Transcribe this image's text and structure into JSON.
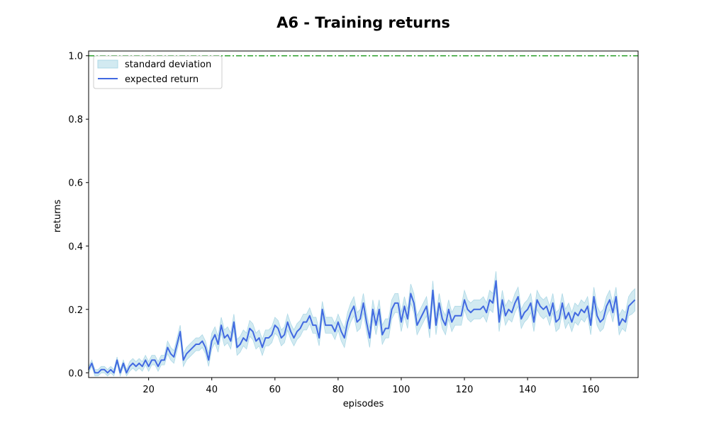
{
  "chart_data": {
    "type": "line",
    "title": "A6 - Training returns",
    "xlabel": "episodes",
    "ylabel": "returns",
    "xlim": [
      1,
      175
    ],
    "ylim": [
      -0.015,
      1.015
    ],
    "xticks": [
      20,
      40,
      60,
      80,
      100,
      120,
      140,
      160
    ],
    "yticks": [
      0.0,
      0.2,
      0.4,
      0.6,
      0.8,
      1.0
    ],
    "grid": false,
    "legend": "top-left",
    "reference_line": {
      "y": 1.0,
      "color": "#2ca02c",
      "style": "dash-dot"
    },
    "series": [
      {
        "name": "expected return",
        "color": "#4169e1",
        "x_start": 1,
        "values": [
          0.01,
          0.03,
          0.0,
          0.0,
          0.01,
          0.01,
          0.0,
          0.01,
          0.0,
          0.04,
          0.0,
          0.03,
          0.0,
          0.02,
          0.03,
          0.02,
          0.03,
          0.02,
          0.04,
          0.02,
          0.04,
          0.04,
          0.02,
          0.04,
          0.04,
          0.08,
          0.06,
          0.05,
          0.09,
          0.13,
          0.04,
          0.06,
          0.07,
          0.08,
          0.09,
          0.09,
          0.1,
          0.08,
          0.04,
          0.1,
          0.12,
          0.09,
          0.15,
          0.11,
          0.12,
          0.1,
          0.16,
          0.08,
          0.09,
          0.11,
          0.1,
          0.14,
          0.13,
          0.1,
          0.11,
          0.08,
          0.11,
          0.11,
          0.12,
          0.15,
          0.14,
          0.11,
          0.12,
          0.16,
          0.13,
          0.11,
          0.13,
          0.14,
          0.16,
          0.16,
          0.18,
          0.15,
          0.15,
          0.11,
          0.2,
          0.15,
          0.15,
          0.15,
          0.13,
          0.16,
          0.13,
          0.11,
          0.16,
          0.19,
          0.21,
          0.16,
          0.17,
          0.22,
          0.16,
          0.11,
          0.2,
          0.15,
          0.2,
          0.12,
          0.14,
          0.14,
          0.2,
          0.22,
          0.22,
          0.16,
          0.21,
          0.17,
          0.25,
          0.22,
          0.15,
          0.17,
          0.19,
          0.21,
          0.14,
          0.26,
          0.15,
          0.22,
          0.17,
          0.15,
          0.2,
          0.16,
          0.18,
          0.18,
          0.18,
          0.23,
          0.2,
          0.19,
          0.2,
          0.2,
          0.2,
          0.21,
          0.19,
          0.23,
          0.22,
          0.29,
          0.16,
          0.23,
          0.18,
          0.2,
          0.19,
          0.22,
          0.24,
          0.17,
          0.19,
          0.2,
          0.22,
          0.16,
          0.23,
          0.21,
          0.2,
          0.21,
          0.18,
          0.22,
          0.16,
          0.17,
          0.22,
          0.17,
          0.19,
          0.16,
          0.19,
          0.18,
          0.2,
          0.19,
          0.21,
          0.15,
          0.24,
          0.18,
          0.16,
          0.17,
          0.21,
          0.23,
          0.19,
          0.24,
          0.15,
          0.17,
          0.16,
          0.21,
          0.22,
          0.23
        ]
      },
      {
        "name": "standard deviation",
        "type": "band",
        "color": "#add8e6",
        "half_width": [
          0.01,
          0.01,
          0.01,
          0.01,
          0.01,
          0.01,
          0.01,
          0.01,
          0.01,
          0.01,
          0.01,
          0.01,
          0.01,
          0.015,
          0.015,
          0.015,
          0.015,
          0.015,
          0.015,
          0.015,
          0.015,
          0.015,
          0.015,
          0.015,
          0.015,
          0.02,
          0.02,
          0.02,
          0.02,
          0.02,
          0.02,
          0.02,
          0.02,
          0.02,
          0.02,
          0.02,
          0.02,
          0.02,
          0.02,
          0.025,
          0.025,
          0.025,
          0.025,
          0.025,
          0.025,
          0.025,
          0.025,
          0.025,
          0.025,
          0.025,
          0.025,
          0.025,
          0.025,
          0.025,
          0.025,
          0.025,
          0.025,
          0.025,
          0.025,
          0.025,
          0.025,
          0.025,
          0.025,
          0.025,
          0.025,
          0.025,
          0.025,
          0.025,
          0.025,
          0.025,
          0.025,
          0.025,
          0.025,
          0.025,
          0.025,
          0.025,
          0.025,
          0.025,
          0.025,
          0.025,
          0.03,
          0.03,
          0.03,
          0.03,
          0.03,
          0.03,
          0.03,
          0.03,
          0.03,
          0.03,
          0.03,
          0.03,
          0.03,
          0.03,
          0.03,
          0.03,
          0.03,
          0.03,
          0.03,
          0.03,
          0.03,
          0.03,
          0.03,
          0.03,
          0.03,
          0.03,
          0.03,
          0.03,
          0.03,
          0.03,
          0.03,
          0.03,
          0.03,
          0.03,
          0.03,
          0.03,
          0.03,
          0.03,
          0.03,
          0.03,
          0.03,
          0.03,
          0.03,
          0.03,
          0.03,
          0.03,
          0.03,
          0.03,
          0.03,
          0.03,
          0.03,
          0.03,
          0.03,
          0.03,
          0.03,
          0.03,
          0.03,
          0.03,
          0.03,
          0.03,
          0.03,
          0.03,
          0.03,
          0.03,
          0.03,
          0.03,
          0.03,
          0.03,
          0.03,
          0.03,
          0.03,
          0.03,
          0.03,
          0.03,
          0.03,
          0.03,
          0.03,
          0.03,
          0.03,
          0.03,
          0.03,
          0.03,
          0.03,
          0.03,
          0.03,
          0.03,
          0.03,
          0.03,
          0.03,
          0.03,
          0.03,
          0.03,
          0.035,
          0.035,
          0.035
        ]
      }
    ]
  }
}
